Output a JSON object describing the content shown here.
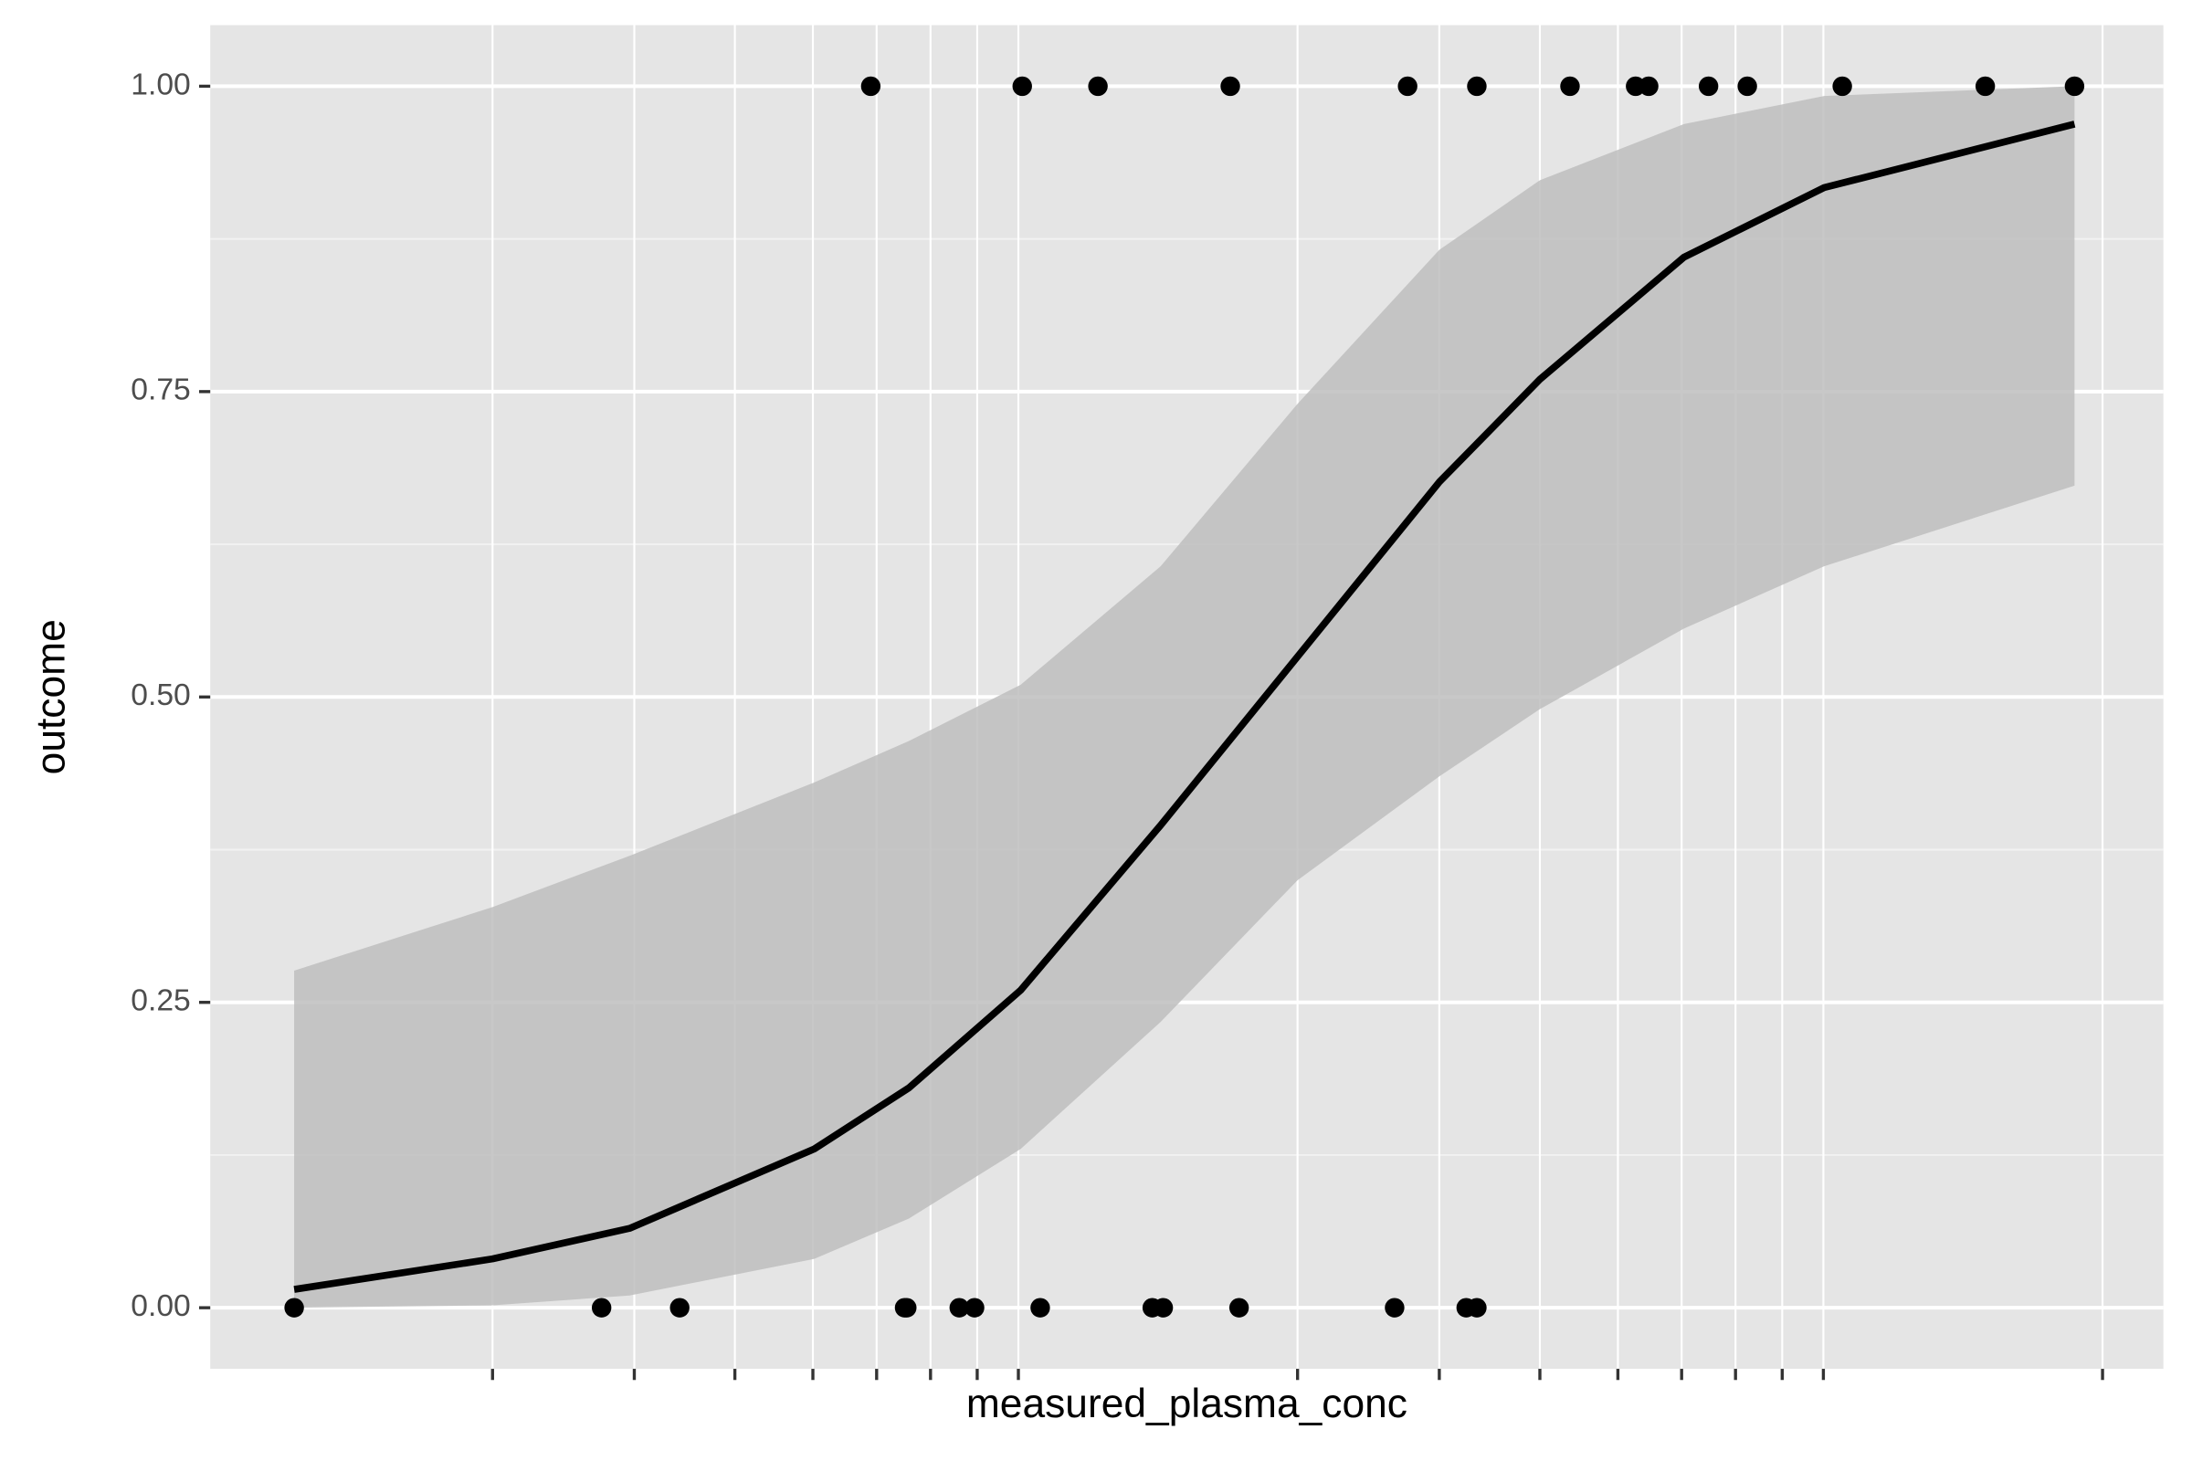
{
  "chart_data": {
    "type": "scatter",
    "x_label": "measured_plasma_conc",
    "y_label": "outcome",
    "log_x": true,
    "grid": true,
    "xlim": [
      0.446,
      119
    ],
    "ylim": [
      -0.05,
      1.05
    ],
    "xticks": [
      1,
      1.5,
      2,
      2.5,
      3,
      3.5,
      4,
      4.5,
      10,
      15,
      20,
      25,
      30,
      35,
      40,
      45,
      100
    ],
    "yticks": [
      {
        "value": 0,
        "label": "0.00"
      },
      {
        "value": 0.25,
        "label": "0.25"
      },
      {
        "value": 0.5,
        "label": "0.50"
      },
      {
        "value": 0.75,
        "label": "0.75"
      },
      {
        "value": 1,
        "label": "1.00"
      }
    ],
    "y_minor_ticks": [
      0.125,
      0.375,
      0.625,
      0.875
    ],
    "points": {
      "color": "#000000",
      "x": [
        0.567,
        1.366,
        1.708,
        3.25,
        3.27,
        3.8,
        3.97,
        4.79,
        6.6,
        6.81,
        8.46,
        13.2,
        16.2,
        16.7,
        2.95,
        4.55,
        5.65,
        8.25,
        13.7,
        16.7,
        21.8,
        26.3,
        27.3,
        32.4,
        36.2,
        47.5,
        71.5,
        92.3
      ],
      "y": [
        0,
        0,
        0,
        0,
        0,
        0,
        0,
        0,
        0,
        0,
        0,
        0,
        0,
        0,
        1,
        1,
        1,
        1,
        1,
        1,
        1,
        1,
        1,
        1,
        1,
        1,
        1,
        1
      ]
    },
    "fit": {
      "color": "#000000",
      "band_color": "#bebebe",
      "x": [
        0.567,
        1,
        1.48,
        2.51,
        3.29,
        4.53,
        6.76,
        10,
        15.0,
        20.0,
        30.2,
        45.1,
        92.3
      ],
      "y": [
        0.015,
        0.04,
        0.065,
        0.13,
        0.18,
        0.26,
        0.395,
        0.533,
        0.676,
        0.76,
        0.86,
        0.917,
        0.969
      ],
      "lower": [
        0.0,
        0.002,
        0.01,
        0.04,
        0.073,
        0.13,
        0.234,
        0.35,
        0.435,
        0.49,
        0.556,
        0.607,
        0.673
      ],
      "upper": [
        0.276,
        0.328,
        0.37,
        0.43,
        0.464,
        0.51,
        0.607,
        0.74,
        0.866,
        0.923,
        0.969,
        0.992,
        1.0
      ]
    }
  }
}
